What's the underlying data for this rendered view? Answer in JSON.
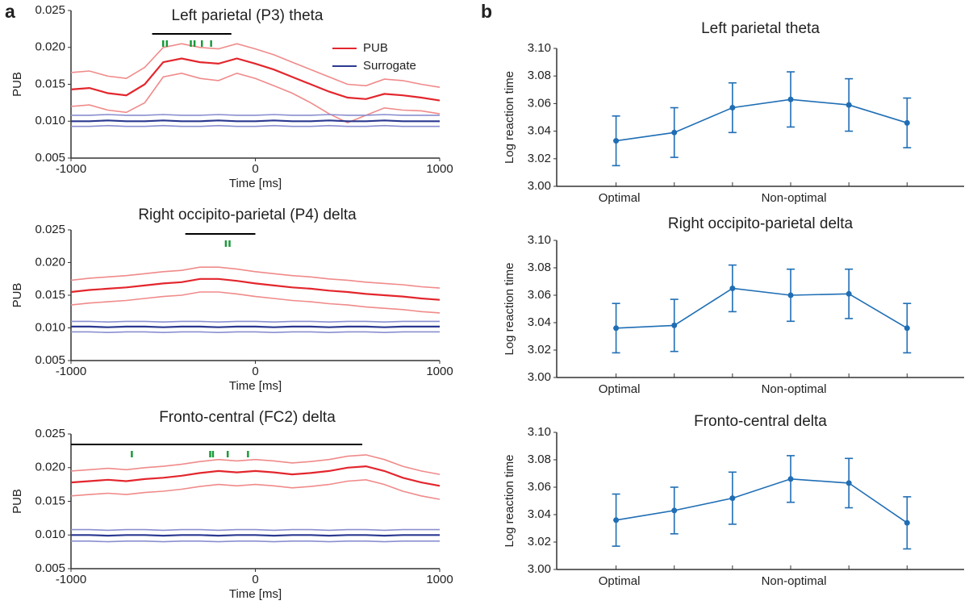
{
  "panel_labels": [
    "a",
    "b"
  ],
  "chart_data": [
    {
      "type": "line",
      "title": "Left parietal (P3) theta",
      "xlabel": "Time [ms]",
      "ylabel": "PUB",
      "x": [
        -1000,
        -900,
        -800,
        -700,
        -600,
        -500,
        -400,
        -300,
        -200,
        -100,
        0,
        100,
        200,
        300,
        400,
        500,
        600,
        700,
        800,
        900,
        1000
      ],
      "xlim": [
        -1000,
        1000
      ],
      "xticks": [
        -1000,
        0,
        1000
      ],
      "ylim": [
        0.005,
        0.025
      ],
      "yticks": [
        0.005,
        {
          "value": 0.01,
          "label": "0.010"
        },
        0.015,
        {
          "value": 0.02,
          "label": "0.020"
        },
        0.025
      ],
      "legend": "upper right",
      "sig_span": [
        -560,
        -130
      ],
      "sig_ticks": [
        -500,
        -480,
        -350,
        -330,
        -290,
        -240
      ],
      "series": [
        {
          "name": "PUB",
          "color": "#e3262d",
          "values": [
            0.0143,
            0.0145,
            0.0138,
            0.0135,
            0.015,
            0.018,
            0.0185,
            0.018,
            0.0178,
            0.0185,
            0.0178,
            0.017,
            0.016,
            0.015,
            0.014,
            0.0132,
            0.013,
            0.0137,
            0.0135,
            0.0132,
            0.0128
          ]
        },
        {
          "color": "#f08a8a",
          "values": [
            0.0166,
            0.0168,
            0.0161,
            0.0158,
            0.0173,
            0.02,
            0.0205,
            0.02,
            0.0198,
            0.0205,
            0.0198,
            0.019,
            0.018,
            0.017,
            0.016,
            0.015,
            0.0148,
            0.0157,
            0.0155,
            0.015,
            0.0146
          ]
        },
        {
          "color": "#f08a8a",
          "values": [
            0.012,
            0.0122,
            0.0115,
            0.0112,
            0.0125,
            0.016,
            0.0165,
            0.0158,
            0.0155,
            0.0165,
            0.0158,
            0.0148,
            0.0138,
            0.0125,
            0.011,
            0.0098,
            0.0108,
            0.0118,
            0.0115,
            0.0114,
            0.011
          ]
        },
        {
          "name": "Surrogate",
          "color": "#2b3990",
          "values": [
            0.01,
            0.01,
            0.0101,
            0.01,
            0.01,
            0.0101,
            0.01,
            0.01,
            0.0101,
            0.01,
            0.01,
            0.0101,
            0.01,
            0.01,
            0.0101,
            0.01,
            0.01,
            0.0101,
            0.01,
            0.01,
            0.01
          ]
        },
        {
          "color": "#8a8fd0",
          "values": [
            0.0108,
            0.0108,
            0.0109,
            0.0108,
            0.0108,
            0.0109,
            0.0108,
            0.0108,
            0.0109,
            0.0108,
            0.0108,
            0.0109,
            0.0108,
            0.0108,
            0.0109,
            0.0108,
            0.0108,
            0.0109,
            0.0108,
            0.0108,
            0.0108
          ]
        },
        {
          "color": "#8a8fd0",
          "values": [
            0.0093,
            0.0093,
            0.0094,
            0.0093,
            0.0093,
            0.0094,
            0.0093,
            0.0093,
            0.0094,
            0.0093,
            0.0093,
            0.0094,
            0.0093,
            0.0093,
            0.0094,
            0.0093,
            0.0093,
            0.0094,
            0.0093,
            0.0093,
            0.0093
          ]
        }
      ]
    },
    {
      "type": "line",
      "title": "Right occipito-parietal (P4) delta",
      "xlabel": "Time [ms]",
      "ylabel": "PUB",
      "x": [
        -1000,
        -900,
        -800,
        -700,
        -600,
        -500,
        -400,
        -300,
        -200,
        -100,
        0,
        100,
        200,
        300,
        400,
        500,
        600,
        700,
        800,
        900,
        1000
      ],
      "xlim": [
        -1000,
        1000
      ],
      "xticks": [
        -1000,
        0,
        1000
      ],
      "ylim": [
        0.005,
        0.025
      ],
      "yticks": [
        0.005,
        {
          "value": 0.01,
          "label": "0.010"
        },
        0.015,
        {
          "value": 0.02,
          "label": "0.020"
        },
        0.025
      ],
      "sig_span": [
        -380,
        0
      ],
      "sig_ticks": [
        -160,
        -140
      ],
      "series": [
        {
          "color": "#e3262d",
          "values": [
            0.0155,
            0.0158,
            0.016,
            0.0162,
            0.0165,
            0.0168,
            0.017,
            0.0175,
            0.0175,
            0.0172,
            0.0168,
            0.0165,
            0.0162,
            0.016,
            0.0157,
            0.0155,
            0.0152,
            0.015,
            0.0148,
            0.0145,
            0.0143
          ]
        },
        {
          "color": "#f08a8a",
          "values": [
            0.0173,
            0.0176,
            0.0178,
            0.018,
            0.0183,
            0.0186,
            0.0188,
            0.0193,
            0.0193,
            0.019,
            0.0186,
            0.0183,
            0.018,
            0.0178,
            0.0175,
            0.0173,
            0.017,
            0.0168,
            0.0166,
            0.0163,
            0.0161
          ]
        },
        {
          "color": "#f08a8a",
          "values": [
            0.0135,
            0.0138,
            0.014,
            0.0142,
            0.0145,
            0.0148,
            0.015,
            0.0155,
            0.0155,
            0.0152,
            0.0148,
            0.0145,
            0.0142,
            0.014,
            0.0137,
            0.0135,
            0.0132,
            0.013,
            0.0128,
            0.0125,
            0.0123
          ]
        },
        {
          "color": "#2b3990",
          "values": [
            0.0102,
            0.0102,
            0.0101,
            0.0102,
            0.0102,
            0.0101,
            0.0102,
            0.0102,
            0.0101,
            0.0102,
            0.0102,
            0.0101,
            0.0102,
            0.0102,
            0.0101,
            0.0102,
            0.0102,
            0.0101,
            0.0102,
            0.0102,
            0.0102
          ]
        },
        {
          "color": "#8a8fd0",
          "values": [
            0.011,
            0.011,
            0.0109,
            0.011,
            0.011,
            0.0109,
            0.011,
            0.011,
            0.0109,
            0.011,
            0.011,
            0.0109,
            0.011,
            0.011,
            0.0109,
            0.011,
            0.011,
            0.0109,
            0.011,
            0.011,
            0.011
          ]
        },
        {
          "color": "#8a8fd0",
          "values": [
            0.0094,
            0.0094,
            0.0093,
            0.0094,
            0.0094,
            0.0093,
            0.0094,
            0.0094,
            0.0093,
            0.0094,
            0.0094,
            0.0093,
            0.0094,
            0.0094,
            0.0093,
            0.0094,
            0.0094,
            0.0093,
            0.0094,
            0.0094,
            0.0094
          ]
        }
      ]
    },
    {
      "type": "line",
      "title": "Fronto-central (FC2) delta",
      "xlabel": "Time [ms]",
      "ylabel": "PUB",
      "x": [
        -1000,
        -900,
        -800,
        -700,
        -600,
        -500,
        -400,
        -300,
        -200,
        -100,
        0,
        100,
        200,
        300,
        400,
        500,
        600,
        700,
        800,
        900,
        1000
      ],
      "xlim": [
        -1000,
        1000
      ],
      "xticks": [
        -1000,
        0,
        1000
      ],
      "ylim": [
        0.005,
        0.025
      ],
      "yticks": [
        0.005,
        {
          "value": 0.01,
          "label": "0.010"
        },
        0.015,
        {
          "value": 0.02,
          "label": "0.020"
        },
        0.025
      ],
      "sig_span": [
        -1000,
        580
      ],
      "sig_ticks": [
        -670,
        -245,
        -230,
        -150,
        -40
      ],
      "series": [
        {
          "color": "#e3262d",
          "values": [
            0.0178,
            0.018,
            0.0182,
            0.018,
            0.0183,
            0.0185,
            0.0188,
            0.0192,
            0.0195,
            0.0193,
            0.0195,
            0.0193,
            0.019,
            0.0192,
            0.0195,
            0.02,
            0.0202,
            0.0195,
            0.0185,
            0.0178,
            0.0173
          ]
        },
        {
          "color": "#f08a8a",
          "values": [
            0.0195,
            0.0197,
            0.0199,
            0.0197,
            0.02,
            0.0202,
            0.0205,
            0.0209,
            0.0212,
            0.021,
            0.0212,
            0.021,
            0.0207,
            0.0209,
            0.0212,
            0.0217,
            0.0219,
            0.0212,
            0.0202,
            0.0195,
            0.019
          ]
        },
        {
          "color": "#f08a8a",
          "values": [
            0.0158,
            0.016,
            0.0162,
            0.016,
            0.0163,
            0.0165,
            0.0168,
            0.0172,
            0.0175,
            0.0173,
            0.0175,
            0.0173,
            0.017,
            0.0172,
            0.0175,
            0.018,
            0.0182,
            0.0175,
            0.0165,
            0.0158,
            0.0153
          ]
        },
        {
          "color": "#2b3990",
          "values": [
            0.01,
            0.01,
            0.0099,
            0.01,
            0.01,
            0.0099,
            0.01,
            0.01,
            0.0099,
            0.01,
            0.01,
            0.0099,
            0.01,
            0.01,
            0.0099,
            0.01,
            0.01,
            0.0099,
            0.01,
            0.01,
            0.01
          ]
        },
        {
          "color": "#8a8fd0",
          "values": [
            0.0108,
            0.0108,
            0.0107,
            0.0108,
            0.0108,
            0.0107,
            0.0108,
            0.0108,
            0.0107,
            0.0108,
            0.0108,
            0.0107,
            0.0108,
            0.0108,
            0.0107,
            0.0108,
            0.0108,
            0.0107,
            0.0108,
            0.0108,
            0.0108
          ]
        },
        {
          "color": "#8a8fd0",
          "values": [
            0.0091,
            0.0091,
            0.009,
            0.0091,
            0.0091,
            0.009,
            0.0091,
            0.0091,
            0.009,
            0.0091,
            0.0091,
            0.009,
            0.0091,
            0.0091,
            0.009,
            0.0091,
            0.0091,
            0.009,
            0.0091,
            0.0091,
            0.0091
          ]
        }
      ]
    },
    {
      "type": "errorbar",
      "title": "Left parietal theta",
      "ylabel": "Log reaction time",
      "color": "#1f6eb5",
      "categories": [
        "Optimal",
        null,
        null,
        "Non-optimal",
        null,
        null
      ],
      "values": [
        3.033,
        3.039,
        3.057,
        3.063,
        3.059,
        3.046
      ],
      "errors": [
        0.018,
        0.018,
        0.018,
        0.02,
        0.019,
        0.018
      ],
      "ylim": [
        3.0,
        3.1
      ],
      "yticks": [
        {
          "value": 3.0,
          "label": "3.00"
        },
        3.02,
        3.04,
        3.06,
        3.08,
        {
          "value": 3.1,
          "label": "3.10"
        }
      ]
    },
    {
      "type": "errorbar",
      "title": "Right occipito-parietal delta",
      "ylabel": "Log reaction time",
      "color": "#1f6eb5",
      "categories": [
        "Optimal",
        null,
        null,
        "Non-optimal",
        null,
        null
      ],
      "values": [
        3.036,
        3.038,
        3.065,
        3.06,
        3.061,
        3.036
      ],
      "errors": [
        0.018,
        0.019,
        0.017,
        0.019,
        0.018,
        0.018
      ],
      "ylim": [
        3.0,
        3.1
      ],
      "yticks": [
        {
          "value": 3.0,
          "label": "3.00"
        },
        3.02,
        3.04,
        3.06,
        3.08,
        {
          "value": 3.1,
          "label": "3.10"
        }
      ]
    },
    {
      "type": "errorbar",
      "title": "Fronto-central delta",
      "ylabel": "Log reaction time",
      "color": "#1f6eb5",
      "categories": [
        "Optimal",
        null,
        null,
        "Non-optimal",
        null,
        null
      ],
      "values": [
        3.036,
        3.043,
        3.052,
        3.066,
        3.063,
        3.034
      ],
      "errors": [
        0.019,
        0.017,
        0.019,
        0.017,
        0.018,
        0.019
      ],
      "ylim": [
        3.0,
        3.1
      ],
      "yticks": [
        {
          "value": 3.0,
          "label": "3.00"
        },
        3.02,
        3.04,
        3.06,
        3.08,
        {
          "value": 3.1,
          "label": "3.10"
        }
      ]
    }
  ]
}
